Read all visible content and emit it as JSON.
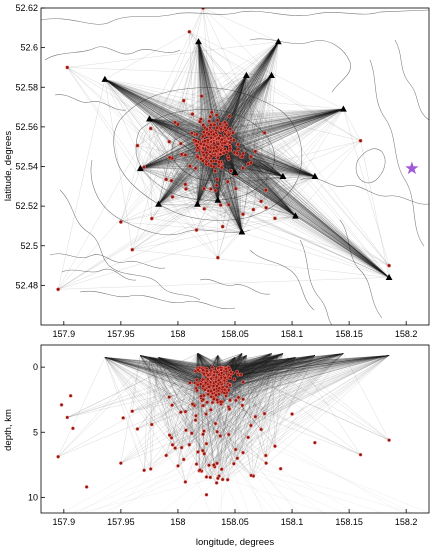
{
  "colors": {
    "event_fill": "#8a1a0c",
    "event_halo": "#ff7a7a",
    "station": "#000000",
    "star": "#a05ad6",
    "ray": "#222222",
    "contour": "#777777"
  },
  "chart_data": [
    {
      "type": "scatter",
      "title": "",
      "xlabel": "",
      "ylabel": "latitude, degrees",
      "xlim": [
        157.88,
        158.22
      ],
      "ylim": [
        52.46,
        52.62
      ],
      "x_ticks": [
        "157.9",
        "157.95",
        "158",
        "158.05",
        "158.1",
        "158.15",
        "158.2"
      ],
      "y_ticks": [
        "52.48",
        "52.5",
        "52.52",
        "52.54",
        "52.56",
        "52.58",
        "52.6",
        "52.62"
      ],
      "grid": false,
      "stations": [
        {
          "x": 158.018,
          "y": 52.603
        },
        {
          "x": 158.088,
          "y": 52.603
        },
        {
          "x": 157.936,
          "y": 52.584
        },
        {
          "x": 158.082,
          "y": 52.586
        },
        {
          "x": 158.06,
          "y": 52.586
        },
        {
          "x": 157.975,
          "y": 52.564
        },
        {
          "x": 158.145,
          "y": 52.569
        },
        {
          "x": 157.967,
          "y": 52.539
        },
        {
          "x": 158.05,
          "y": 52.537
        },
        {
          "x": 158.092,
          "y": 52.535
        },
        {
          "x": 158.12,
          "y": 52.535
        },
        {
          "x": 157.983,
          "y": 52.521
        },
        {
          "x": 158.017,
          "y": 52.521
        },
        {
          "x": 158.035,
          "y": 52.523
        },
        {
          "x": 158.103,
          "y": 52.515
        },
        {
          "x": 158.056,
          "y": 52.507
        },
        {
          "x": 158.185,
          "y": 52.484
        }
      ],
      "star": {
        "x": 158.205,
        "y": 52.539
      },
      "events_extra": [
        {
          "x": 157.895,
          "y": 52.478
        },
        {
          "x": 158.022,
          "y": 52.62
        },
        {
          "x": 158.185,
          "y": 52.49
        },
        {
          "x": 158.035,
          "y": 52.494
        },
        {
          "x": 157.96,
          "y": 52.498
        },
        {
          "x": 157.903,
          "y": 52.59
        },
        {
          "x": 158.16,
          "y": 52.553
        },
        {
          "x": 157.95,
          "y": 52.512
        },
        {
          "x": 158.01,
          "y": 52.608
        }
      ]
    },
    {
      "type": "scatter",
      "title": "",
      "xlabel": "longitude, degrees",
      "ylabel": "depth, km",
      "xlim": [
        157.88,
        158.22
      ],
      "ylim": [
        -1.7,
        11.2
      ],
      "y_inverted": true,
      "x_ticks": [
        "157.9",
        "157.95",
        "158",
        "158.05",
        "158.1",
        "158.15",
        "158.2"
      ],
      "y_ticks": [
        "0",
        "5",
        "10"
      ],
      "grid": false,
      "events_extra": [
        {
          "x": 157.92,
          "y": 9.2
        },
        {
          "x": 157.908,
          "y": 4.7
        },
        {
          "x": 157.898,
          "y": 2.9
        },
        {
          "x": 157.906,
          "y": 2.2
        },
        {
          "x": 157.952,
          "y": 3.9
        },
        {
          "x": 158.09,
          "y": 7.8
        },
        {
          "x": 158.1,
          "y": 3.6
        },
        {
          "x": 158.12,
          "y": 5.8
        },
        {
          "x": 158.025,
          "y": 9.8
        }
      ]
    }
  ]
}
